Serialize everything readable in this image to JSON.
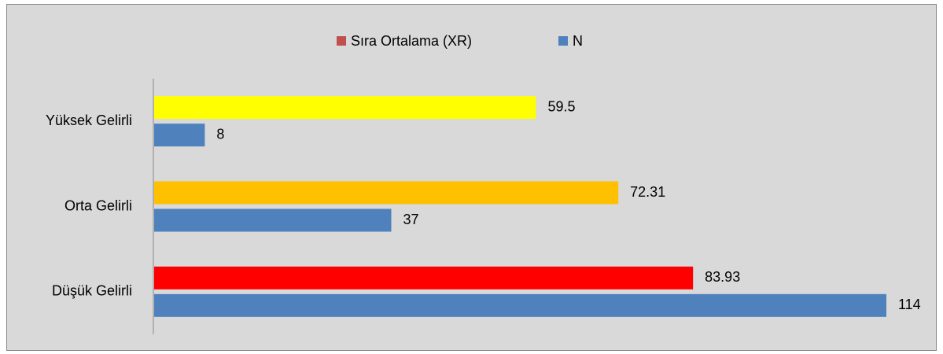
{
  "chart_data": {
    "type": "bar",
    "orientation": "horizontal",
    "categories": [
      "Yüksek Gelirli",
      "Orta Gelirli",
      "Düşük Gelirli"
    ],
    "series": [
      {
        "name": "Sıra Ortalama (XR)",
        "color": "#c0504d",
        "colors": [
          "#ffff00",
          "#ffc000",
          "#ff0000"
        ],
        "values": [
          59.5,
          72.31,
          83.93
        ]
      },
      {
        "name": "N",
        "color": "#4f81bd",
        "values": [
          8,
          37,
          114
        ]
      }
    ],
    "legend": "top"
  }
}
